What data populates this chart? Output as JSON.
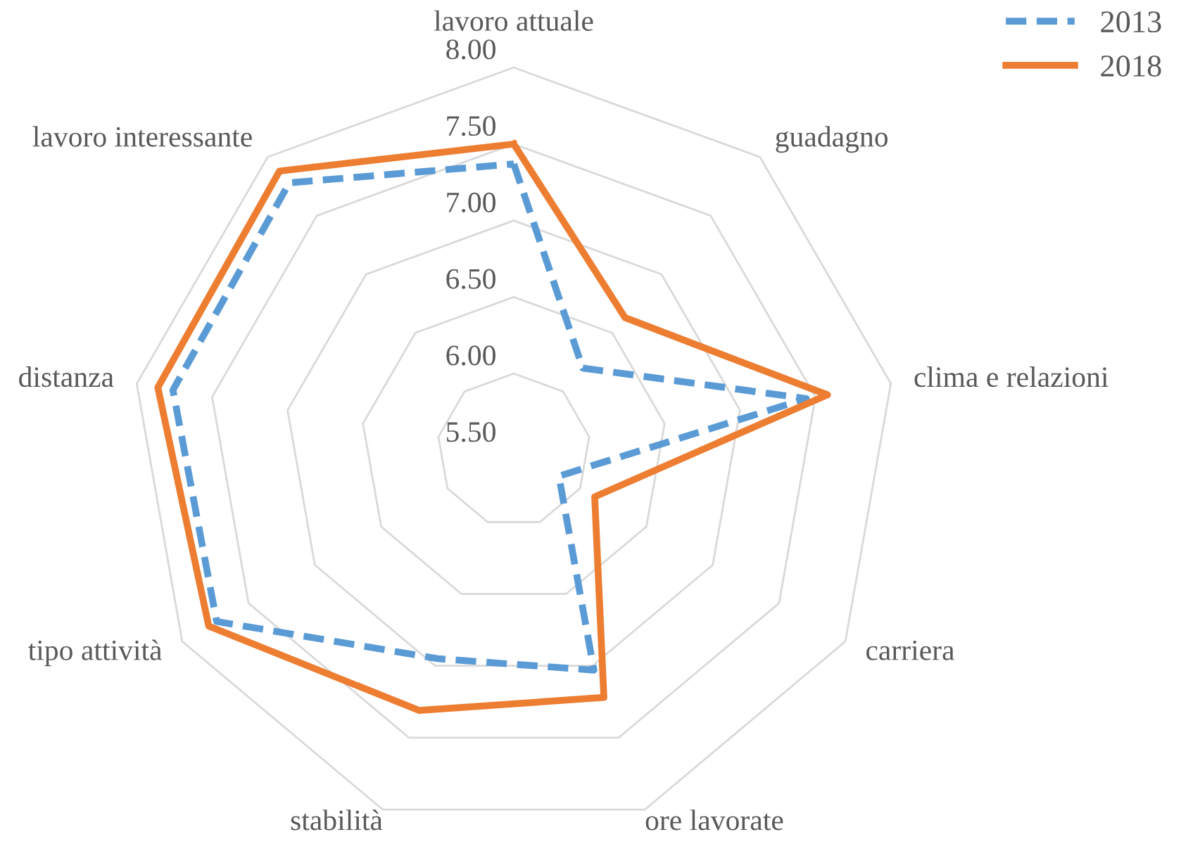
{
  "chart_data": {
    "type": "radar",
    "categories": [
      "lavoro attuale",
      "guadagno",
      "clima e relazioni",
      "carriera",
      "ore lavorate",
      "stabilità",
      "tipo attività",
      "distanza",
      "lavoro interessante"
    ],
    "series": [
      {
        "name": "2013",
        "color": "#5b9bd5",
        "line_style": "dashed",
        "values": [
          7.37,
          6.2,
          7.44,
          5.84,
          7.03,
          6.95,
          7.74,
          7.76,
          7.78
        ]
      },
      {
        "name": "2018",
        "color": "#ed7d31",
        "line_style": "solid",
        "values": [
          7.5,
          6.63,
          7.58,
          6.11,
          7.22,
          7.31,
          7.8,
          7.86,
          7.88
        ]
      }
    ],
    "ylim": [
      5.5,
      8.0
    ],
    "yticks": [
      {
        "value": 5.5,
        "label": "5.50"
      },
      {
        "value": 6.0,
        "label": "6.00"
      },
      {
        "value": 6.5,
        "label": "6.50"
      },
      {
        "value": 7.0,
        "label": "7.00"
      },
      {
        "value": 7.5,
        "label": "7.50"
      },
      {
        "value": 8.0,
        "label": "8.00"
      }
    ],
    "grid": true,
    "legend": "top right",
    "marker": "none"
  }
}
